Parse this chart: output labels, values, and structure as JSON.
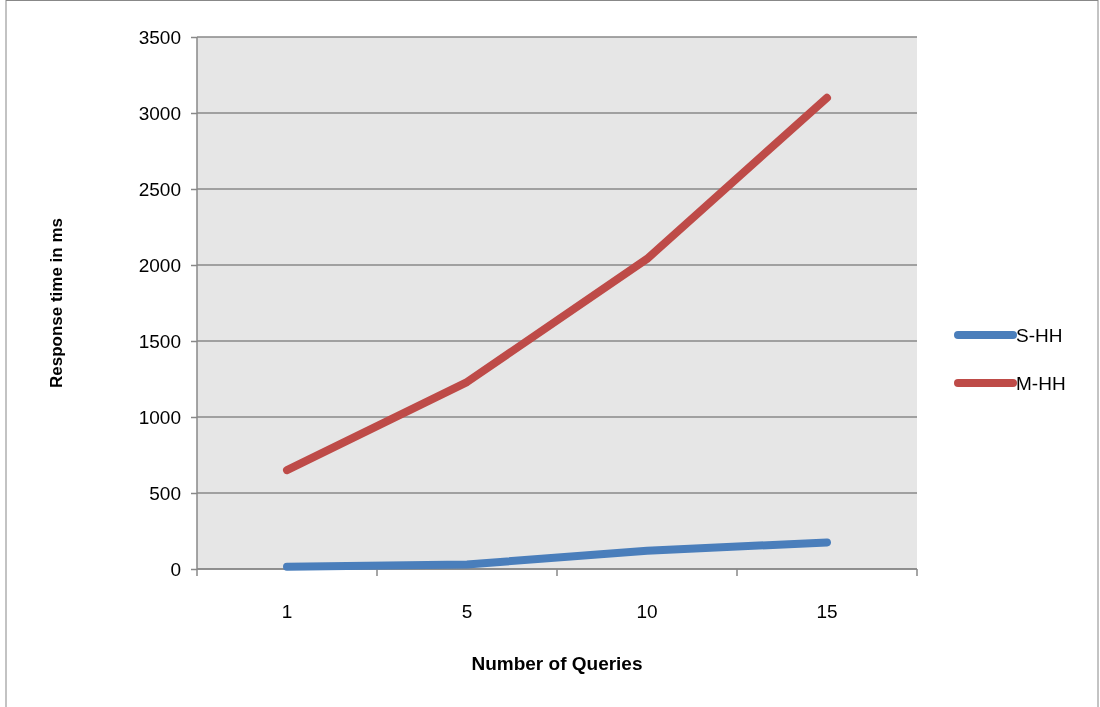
{
  "chart_data": {
    "type": "line",
    "xlabel": "Number of Queries",
    "ylabel": "Response time in ms",
    "categories": [
      "1",
      "5",
      "10",
      "15"
    ],
    "series": [
      {
        "name": "S-HH",
        "color": "#4a7ebb",
        "values": [
          15,
          30,
          120,
          175
        ]
      },
      {
        "name": "M-HH",
        "color": "#be4b48",
        "values": [
          650,
          1230,
          2040,
          3100
        ]
      }
    ],
    "ylim": [
      0,
      3500
    ],
    "yticks": [
      0,
      500,
      1000,
      1500,
      2000,
      2500,
      3000,
      3500
    ],
    "grid": "y",
    "legend": "right",
    "marker": "none",
    "line_style": "solid"
  }
}
